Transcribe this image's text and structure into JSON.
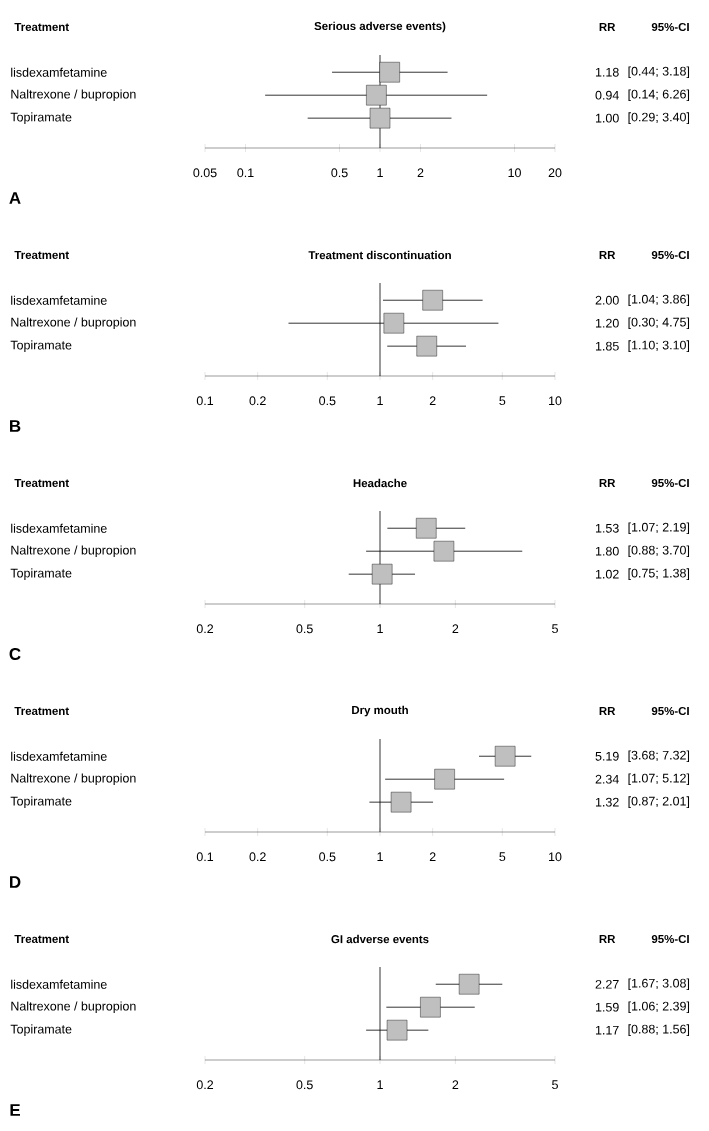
{
  "chart_data": [
    {
      "type": "scatter",
      "orientation": "horizontal",
      "title": "Serious adverse events)",
      "ylabel": "Treatment",
      "categories": [
        "lisdexamfetamine",
        "Naltrexone / bupropion",
        "Topiramate"
      ],
      "values": [
        1.18,
        0.94,
        1.0
      ],
      "errors": [
        [
          0.44,
          3.18
        ],
        [
          0.14,
          6.26
        ],
        [
          0.29,
          3.4
        ]
      ],
      "log": "x",
      "xlim": [
        0.05,
        20
      ],
      "xticks": [
        0.05,
        0.1,
        0.5,
        1,
        2,
        10,
        20
      ],
      "ref_lines": [
        {
          "axis": "x",
          "value": 1
        }
      ],
      "marker": "square",
      "color": "#bfbfbf",
      "value_labels": [
        "1.18",
        "0.94",
        "1.00"
      ],
      "annotations": [
        "RR",
        "95%-CI",
        "[0.44; 3.18]",
        "[0.14; 6.26]",
        "[0.29; 3.40]",
        "A"
      ]
    },
    {
      "type": "scatter",
      "orientation": "horizontal",
      "title": "Treatment discontinuation",
      "ylabel": "Treatment",
      "categories": [
        "lisdexamfetamine",
        "Naltrexone / bupropion",
        "Topiramate"
      ],
      "values": [
        2.0,
        1.2,
        1.85
      ],
      "errors": [
        [
          1.04,
          3.86
        ],
        [
          0.3,
          4.75
        ],
        [
          1.1,
          3.1
        ]
      ],
      "log": "x",
      "xlim": [
        0.1,
        10
      ],
      "xticks": [
        0.1,
        0.2,
        0.5,
        1,
        2,
        5,
        10
      ],
      "ref_lines": [
        {
          "axis": "x",
          "value": 1
        }
      ],
      "marker": "square",
      "color": "#bfbfbf",
      "value_labels": [
        "2.00",
        "1.20",
        "1.85"
      ],
      "annotations": [
        "RR",
        "95%-CI",
        "[1.04; 3.86]",
        "[0.30; 4.75]",
        "[1.10; 3.10]",
        "B"
      ]
    },
    {
      "type": "scatter",
      "orientation": "horizontal",
      "title": "Headache",
      "ylabel": "Treatment",
      "categories": [
        "lisdexamfetamine",
        "Naltrexone / bupropion",
        "Topiramate"
      ],
      "values": [
        1.53,
        1.8,
        1.02
      ],
      "errors": [
        [
          1.07,
          2.19
        ],
        [
          0.88,
          3.7
        ],
        [
          0.75,
          1.38
        ]
      ],
      "log": "x",
      "xlim": [
        0.2,
        5
      ],
      "xticks": [
        0.2,
        0.5,
        1,
        2,
        5
      ],
      "ref_lines": [
        {
          "axis": "x",
          "value": 1
        }
      ],
      "marker": "square",
      "color": "#bfbfbf",
      "value_labels": [
        "1.53",
        "1.80",
        "1.02"
      ],
      "annotations": [
        "RR",
        "95%-CI",
        "[1.07; 2.19]",
        "[0.88; 3.70]",
        "[0.75; 1.38]",
        "C"
      ]
    },
    {
      "type": "scatter",
      "orientation": "horizontal",
      "title": "Dry mouth",
      "ylabel": "Treatment",
      "categories": [
        "lisdexamfetamine",
        "Naltrexone / bupropion",
        "Topiramate"
      ],
      "values": [
        5.19,
        2.34,
        1.32
      ],
      "errors": [
        [
          3.68,
          7.32
        ],
        [
          1.07,
          5.12
        ],
        [
          0.87,
          2.01
        ]
      ],
      "log": "x",
      "xlim": [
        0.1,
        10
      ],
      "xticks": [
        0.1,
        0.2,
        0.5,
        1,
        2,
        5,
        10
      ],
      "ref_lines": [
        {
          "axis": "x",
          "value": 1
        }
      ],
      "marker": "square",
      "color": "#bfbfbf",
      "data_labels": true,
      "annotations": [
        "RR",
        "95%-CI",
        "[3.68; 7.32]",
        "[1.07; 5.12]",
        "[0.87; 2.01]",
        "D"
      ]
    },
    {
      "type": "scatter",
      "orientation": "horizontal",
      "title": "GI adverse events",
      "ylabel": "Treatment",
      "categories": [
        "lisdexamfetamine",
        "Naltrexone / bupropion",
        "Topiramate"
      ],
      "values": [
        2.27,
        1.59,
        1.17
      ],
      "errors": [
        [
          1.67,
          3.08
        ],
        [
          1.06,
          2.39
        ],
        [
          0.88,
          1.56
        ]
      ],
      "log": "x",
      "xlim": [
        0.2,
        5
      ],
      "xticks": [
        0.2,
        0.5,
        1,
        2,
        5
      ],
      "ref_lines": [
        {
          "axis": "x",
          "value": 1
        }
      ],
      "marker": "square",
      "color": "#bfbfbf",
      "data_labels": true,
      "annotations": [
        "RR",
        "95%-CI",
        "[1.67; 3.08]",
        "[1.06; 2.39]",
        "[0.88; 1.56]",
        "E"
      ]
    }
  ]
}
